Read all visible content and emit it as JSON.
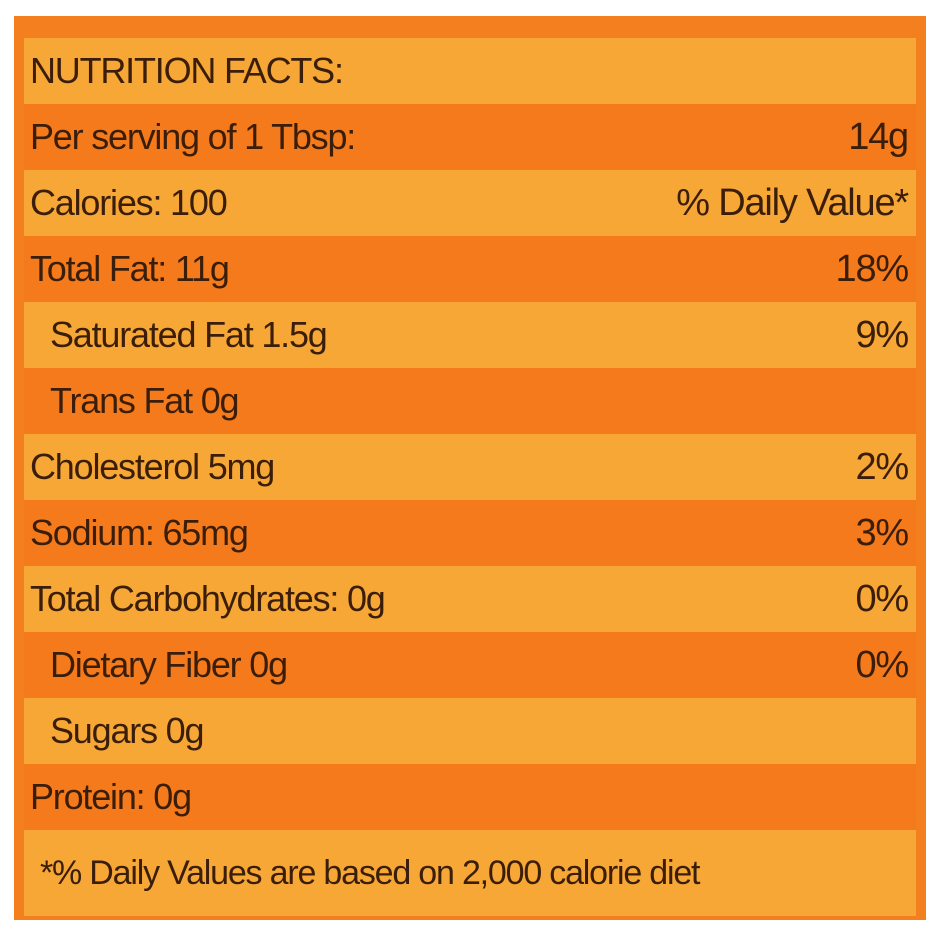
{
  "header": {
    "title": "NUTRITION FACTS:"
  },
  "rows": [
    {
      "label": "Per serving of 1 Tbsp:",
      "value": "14g"
    },
    {
      "label": "Calories: 100",
      "value": "% Daily Value*"
    },
    {
      "label": "Total Fat: 11g",
      "value": "18%"
    },
    {
      "label": "Saturated Fat 1.5g",
      "value": "9%"
    },
    {
      "label": "Trans Fat 0g"
    },
    {
      "label": "Cholesterol 5mg",
      "value": "2%"
    },
    {
      "label": "Sodium: 65mg",
      "value": "3%"
    },
    {
      "label": "Total Carbohydrates: 0g",
      "value": "0%"
    },
    {
      "label": "Dietary Fiber 0g",
      "value": "0%"
    },
    {
      "label": "Sugars 0g"
    },
    {
      "label": "Protein: 0g"
    }
  ],
  "footnote": "*% Daily Values are based on 2,000 calorie diet"
}
